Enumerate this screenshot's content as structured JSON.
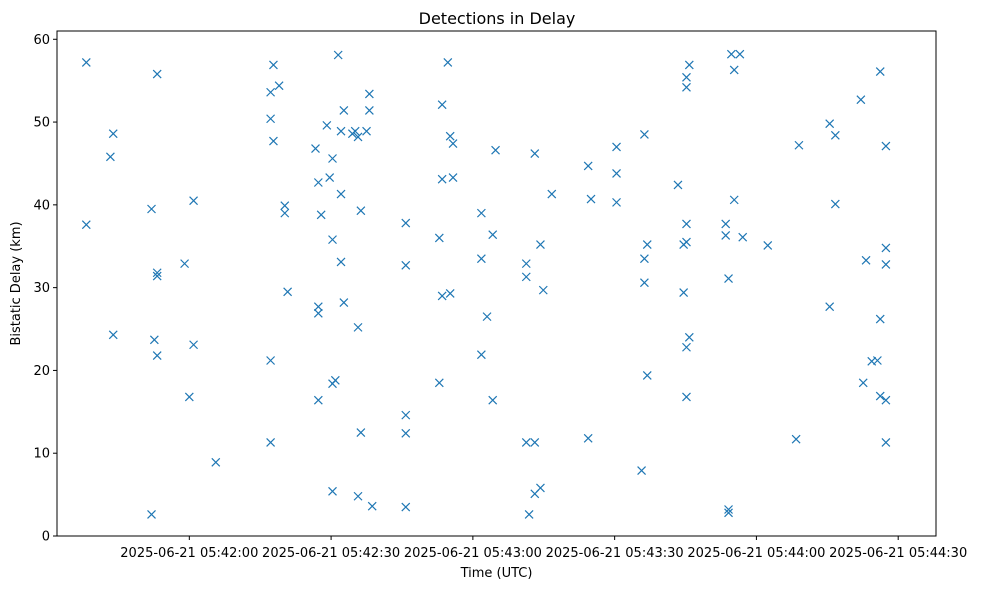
{
  "chart_data": {
    "type": "scatter",
    "title": "Detections in Delay",
    "xlabel": "Time (UTC)",
    "ylabel": "Bistatic Delay (km)",
    "x_is_time": true,
    "xlim": [
      "2025-06-21 05:41:32",
      "2025-06-21 05:44:38"
    ],
    "ylim": [
      0,
      61
    ],
    "xticks": [
      "2025-06-21 05:42:00",
      "2025-06-21 05:42:30",
      "2025-06-21 05:43:00",
      "2025-06-21 05:43:30",
      "2025-06-21 05:44:00",
      "2025-06-21 05:44:30"
    ],
    "yticks": [
      0,
      10,
      20,
      30,
      40,
      50,
      60
    ],
    "grid": false,
    "marker": "x",
    "color": "#1f77b4",
    "series": [
      {
        "points": [
          [
            "2025-06-21 05:41:38.2",
            57.2
          ],
          [
            "2025-06-21 05:41:38.2",
            37.6
          ],
          [
            "2025-06-21 05:41:43.3",
            45.8
          ],
          [
            "2025-06-21 05:41:43.9",
            48.6
          ],
          [
            "2025-06-21 05:41:43.9",
            24.3
          ],
          [
            "2025-06-21 05:41:52.0",
            39.5
          ],
          [
            "2025-06-21 05:41:52.0",
            2.6
          ],
          [
            "2025-06-21 05:41:52.6",
            23.7
          ],
          [
            "2025-06-21 05:41:53.2",
            55.8
          ],
          [
            "2025-06-21 05:41:53.2",
            31.8
          ],
          [
            "2025-06-21 05:41:53.2",
            31.4
          ],
          [
            "2025-06-21 05:41:53.2",
            21.8
          ],
          [
            "2025-06-21 05:41:59.0",
            32.9
          ],
          [
            "2025-06-21 05:42:00.0",
            16.8
          ],
          [
            "2025-06-21 05:42:00.9",
            40.5
          ],
          [
            "2025-06-21 05:42:00.9",
            23.1
          ],
          [
            "2025-06-21 05:42:05.6",
            8.9
          ],
          [
            "2025-06-21 05:42:17.2",
            53.6
          ],
          [
            "2025-06-21 05:42:17.2",
            50.4
          ],
          [
            "2025-06-21 05:42:17.2",
            21.2
          ],
          [
            "2025-06-21 05:42:17.2",
            11.3
          ],
          [
            "2025-06-21 05:42:17.8",
            56.9
          ],
          [
            "2025-06-21 05:42:17.8",
            47.7
          ],
          [
            "2025-06-21 05:42:19.0",
            54.4
          ],
          [
            "2025-06-21 05:42:20.2",
            39.9
          ],
          [
            "2025-06-21 05:42:20.2",
            39.0
          ],
          [
            "2025-06-21 05:42:20.8",
            29.5
          ],
          [
            "2025-06-21 05:42:26.7",
            46.8
          ],
          [
            "2025-06-21 05:42:27.3",
            42.7
          ],
          [
            "2025-06-21 05:42:27.3",
            27.7
          ],
          [
            "2025-06-21 05:42:27.3",
            26.9
          ],
          [
            "2025-06-21 05:42:27.3",
            16.4
          ],
          [
            "2025-06-21 05:42:27.9",
            38.8
          ],
          [
            "2025-06-21 05:42:29.1",
            49.6
          ],
          [
            "2025-06-21 05:42:29.7",
            43.3
          ],
          [
            "2025-06-21 05:42:30.3",
            45.6
          ],
          [
            "2025-06-21 05:42:30.3",
            35.8
          ],
          [
            "2025-06-21 05:42:30.3",
            18.4
          ],
          [
            "2025-06-21 05:42:30.3",
            5.4
          ],
          [
            "2025-06-21 05:42:30.9",
            18.8
          ],
          [
            "2025-06-21 05:42:31.5",
            58.1
          ],
          [
            "2025-06-21 05:42:32.1",
            48.9
          ],
          [
            "2025-06-21 05:42:32.1",
            41.3
          ],
          [
            "2025-06-21 05:42:32.1",
            33.1
          ],
          [
            "2025-06-21 05:42:32.7",
            51.4
          ],
          [
            "2025-06-21 05:42:32.7",
            28.2
          ],
          [
            "2025-06-21 05:42:34.5",
            48.6
          ],
          [
            "2025-06-21 05:42:35.1",
            48.9
          ],
          [
            "2025-06-21 05:42:35.7",
            48.2
          ],
          [
            "2025-06-21 05:42:35.7",
            25.2
          ],
          [
            "2025-06-21 05:42:35.7",
            4.8
          ],
          [
            "2025-06-21 05:42:36.3",
            39.3
          ],
          [
            "2025-06-21 05:42:36.3",
            12.5
          ],
          [
            "2025-06-21 05:42:37.5",
            48.9
          ],
          [
            "2025-06-21 05:42:38.1",
            53.4
          ],
          [
            "2025-06-21 05:42:38.1",
            51.4
          ],
          [
            "2025-06-21 05:42:38.7",
            3.6
          ],
          [
            "2025-06-21 05:42:45.8",
            37.8
          ],
          [
            "2025-06-21 05:42:45.8",
            32.7
          ],
          [
            "2025-06-21 05:42:45.8",
            14.6
          ],
          [
            "2025-06-21 05:42:45.8",
            12.4
          ],
          [
            "2025-06-21 05:42:45.8",
            3.5
          ],
          [
            "2025-06-21 05:42:52.9",
            36.0
          ],
          [
            "2025-06-21 05:42:52.9",
            18.5
          ],
          [
            "2025-06-21 05:42:53.5",
            52.1
          ],
          [
            "2025-06-21 05:42:53.5",
            43.1
          ],
          [
            "2025-06-21 05:42:53.5",
            29.0
          ],
          [
            "2025-06-21 05:42:54.7",
            57.2
          ],
          [
            "2025-06-21 05:42:55.2",
            48.3
          ],
          [
            "2025-06-21 05:42:55.2",
            29.3
          ],
          [
            "2025-06-21 05:42:55.8",
            47.4
          ],
          [
            "2025-06-21 05:42:55.8",
            43.3
          ],
          [
            "2025-06-21 05:43:01.8",
            39.0
          ],
          [
            "2025-06-21 05:43:01.8",
            33.5
          ],
          [
            "2025-06-21 05:43:01.8",
            21.9
          ],
          [
            "2025-06-21 05:43:03.0",
            26.5
          ],
          [
            "2025-06-21 05:43:04.2",
            36.4
          ],
          [
            "2025-06-21 05:43:04.8",
            46.6
          ],
          [
            "2025-06-21 05:43:04.2",
            16.4
          ],
          [
            "2025-06-21 05:43:11.3",
            32.9
          ],
          [
            "2025-06-21 05:43:11.3",
            31.3
          ],
          [
            "2025-06-21 05:43:11.3",
            11.3
          ],
          [
            "2025-06-21 05:43:11.9",
            2.6
          ],
          [
            "2025-06-21 05:43:13.1",
            46.2
          ],
          [
            "2025-06-21 05:43:13.1",
            11.3
          ],
          [
            "2025-06-21 05:43:13.1",
            5.1
          ],
          [
            "2025-06-21 05:43:14.3",
            35.2
          ],
          [
            "2025-06-21 05:43:14.3",
            5.8
          ],
          [
            "2025-06-21 05:43:14.9",
            29.7
          ],
          [
            "2025-06-21 05:43:16.7",
            41.3
          ],
          [
            "2025-06-21 05:43:24.4",
            44.7
          ],
          [
            "2025-06-21 05:43:24.4",
            11.8
          ],
          [
            "2025-06-21 05:43:25.0",
            40.7
          ],
          [
            "2025-06-21 05:43:30.4",
            47.0
          ],
          [
            "2025-06-21 05:43:30.4",
            43.8
          ],
          [
            "2025-06-21 05:43:30.4",
            40.3
          ],
          [
            "2025-06-21 05:43:36.3",
            48.5
          ],
          [
            "2025-06-21 05:43:36.3",
            33.5
          ],
          [
            "2025-06-21 05:43:36.3",
            30.6
          ],
          [
            "2025-06-21 05:43:36.9",
            35.2
          ],
          [
            "2025-06-21 05:43:36.9",
            19.4
          ],
          [
            "2025-06-21 05:43:35.7",
            7.9
          ],
          [
            "2025-06-21 05:43:43.4",
            42.4
          ],
          [
            "2025-06-21 05:43:44.6",
            35.2
          ],
          [
            "2025-06-21 05:43:45.2",
            35.5
          ],
          [
            "2025-06-21 05:43:44.6",
            29.4
          ],
          [
            "2025-06-21 05:43:45.2",
            55.4
          ],
          [
            "2025-06-21 05:43:45.2",
            54.2
          ],
          [
            "2025-06-21 05:43:45.8",
            56.9
          ],
          [
            "2025-06-21 05:43:45.2",
            37.7
          ],
          [
            "2025-06-21 05:43:45.2",
            22.8
          ],
          [
            "2025-06-21 05:43:45.8",
            24.0
          ],
          [
            "2025-06-21 05:43:45.2",
            16.8
          ],
          [
            "2025-06-21 05:43:53.5",
            37.7
          ],
          [
            "2025-06-21 05:43:53.5",
            36.3
          ],
          [
            "2025-06-21 05:43:54.1",
            31.1
          ],
          [
            "2025-06-21 05:43:54.1",
            3.2
          ],
          [
            "2025-06-21 05:43:54.1",
            2.8
          ],
          [
            "2025-06-21 05:43:54.7",
            58.2
          ],
          [
            "2025-06-21 05:43:55.3",
            56.3
          ],
          [
            "2025-06-21 05:43:55.3",
            40.6
          ],
          [
            "2025-06-21 05:43:56.5",
            58.2
          ],
          [
            "2025-06-21 05:43:57.1",
            36.1
          ],
          [
            "2025-06-21 05:44:02.4",
            35.1
          ],
          [
            "2025-06-21 05:44:08.4",
            11.7
          ],
          [
            "2025-06-21 05:44:09.0",
            47.2
          ],
          [
            "2025-06-21 05:44:15.5",
            49.8
          ],
          [
            "2025-06-21 05:44:15.5",
            27.7
          ],
          [
            "2025-06-21 05:44:16.7",
            48.4
          ],
          [
            "2025-06-21 05:44:16.7",
            40.1
          ],
          [
            "2025-06-21 05:44:22.1",
            52.7
          ],
          [
            "2025-06-21 05:44:22.6",
            18.5
          ],
          [
            "2025-06-21 05:44:23.2",
            33.3
          ],
          [
            "2025-06-21 05:44:24.4",
            21.1
          ],
          [
            "2025-06-21 05:44:25.6",
            21.2
          ],
          [
            "2025-06-21 05:44:26.2",
            56.1
          ],
          [
            "2025-06-21 05:44:26.2",
            26.2
          ],
          [
            "2025-06-21 05:44:26.2",
            16.9
          ],
          [
            "2025-06-21 05:44:27.4",
            47.1
          ],
          [
            "2025-06-21 05:44:27.4",
            34.8
          ],
          [
            "2025-06-21 05:44:27.4",
            32.8
          ],
          [
            "2025-06-21 05:44:27.4",
            16.4
          ],
          [
            "2025-06-21 05:44:27.4",
            11.3
          ]
        ]
      }
    ]
  }
}
